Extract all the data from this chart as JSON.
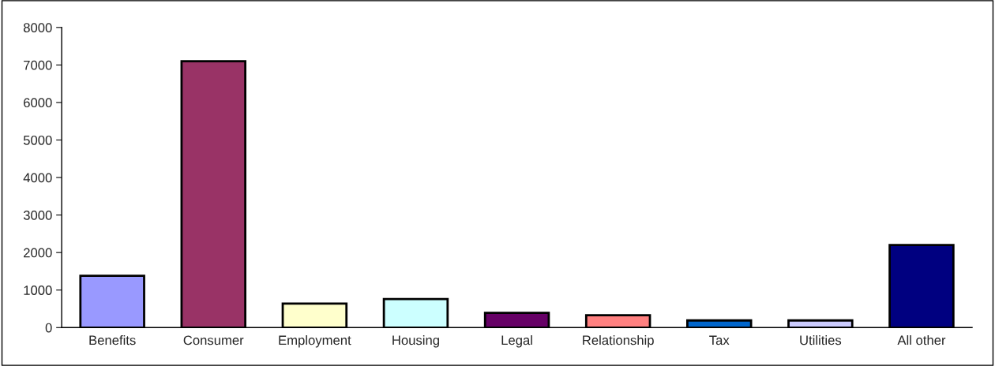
{
  "chart_data": {
    "type": "bar",
    "categories": [
      "Benefits",
      "Consumer",
      "Employment",
      "Housing",
      "Legal",
      "Relationship",
      "Tax",
      "Utilities",
      "All other"
    ],
    "values": [
      1380,
      7100,
      640,
      760,
      390,
      330,
      190,
      190,
      2200
    ],
    "colors": [
      "#9999ff",
      "#993366",
      "#ffffcc",
      "#ccffff",
      "#660066",
      "#ff8080",
      "#0066cc",
      "#ccccff",
      "#000080"
    ],
    "ylim": [
      0,
      8000
    ],
    "yticks": [
      0,
      1000,
      2000,
      3000,
      4000,
      5000,
      6000,
      7000,
      8000
    ],
    "grid": false,
    "legend": false
  }
}
